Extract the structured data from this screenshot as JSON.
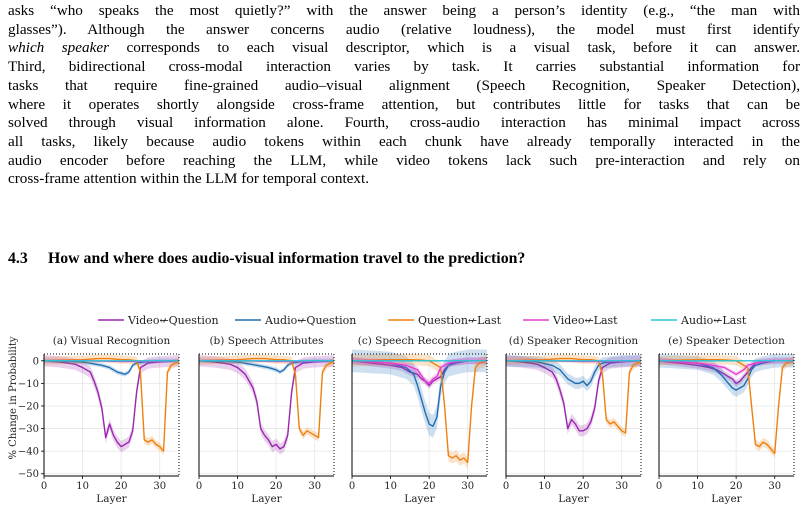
{
  "paragraph": {
    "lines": [
      [
        {
          "t": "asks “who speaks the most quietly?” with the answer being a person’s identity (e.g., “the man with"
        }
      ],
      [
        {
          "t": "glasses”).  Although the answer concerns audio (relative loudness), the model must first identify"
        }
      ],
      [
        {
          "t": "which speaker",
          "i": true
        },
        {
          "t": " corresponds to each visual descriptor, which is a visual task, before it can answer."
        }
      ],
      [
        {
          "t": "Third, bidirectional cross-modal interaction varies by task.  It carries substantial information for"
        }
      ],
      [
        {
          "t": "tasks that require fine-grained audio–visual alignment (Speech Recognition, Speaker Detection),"
        }
      ],
      [
        {
          "t": "where it operates shortly alongside cross-frame attention, but contributes little for tasks that can be"
        }
      ],
      [
        {
          "t": "solved through visual information alone. Fourth, cross-audio interaction has minimal impact across"
        }
      ],
      [
        {
          "t": "all tasks, likely because audio tokens within each chunk have already temporally interacted in the"
        }
      ],
      [
        {
          "t": "audio encoder before reaching the LLM, while video tokens lack such pre-interaction and rely on"
        }
      ],
      [
        {
          "t": "cross-frame attention within the LLM for temporal context."
        }
      ]
    ]
  },
  "section": {
    "number": "4.3",
    "title": "How and where does audio-visual information travel to the prediction?"
  },
  "figure": {
    "legend": [
      {
        "name": "Video↚Question",
        "color": "#9b27af"
      },
      {
        "name": "Audio↚Question",
        "color": "#1f6fb4"
      },
      {
        "name": "Question↚Last",
        "color": "#ef7f0e"
      },
      {
        "name": "Video↚Last",
        "color": "#e23fd3"
      },
      {
        "name": "Audio↚Last",
        "color": "#25c6d6"
      }
    ],
    "ylabel": "% Change in Probability",
    "xlabel": "Layer"
  },
  "chart_data": [
    {
      "type": "line",
      "title": "(a) Visual Recognition",
      "xlabel": "Layer",
      "ylabel": "% Change in Probability",
      "xlim": [
        0,
        35
      ],
      "ylim": [
        -51,
        3
      ],
      "xticks": [
        0,
        10,
        20,
        30
      ],
      "yticks": [
        0,
        -10,
        -20,
        -30,
        -40,
        -50
      ],
      "grid": true,
      "series": [
        {
          "name": "Video↚Question",
          "x": [
            0,
            4,
            8,
            10,
            12,
            13,
            14,
            15,
            16,
            17,
            18,
            19,
            20,
            21,
            22,
            23,
            24,
            25,
            27,
            30,
            35
          ],
          "y": [
            0,
            -0.5,
            -1.5,
            -3,
            -5,
            -9,
            -14,
            -21,
            -34,
            -28,
            -33,
            -36,
            -38,
            -37,
            -36,
            -31,
            -14,
            -3,
            -1,
            -0.5,
            0
          ],
          "band": 2.5
        },
        {
          "name": "Audio↚Question",
          "x": [
            0,
            10,
            15,
            17,
            19,
            21,
            22,
            23,
            24,
            26,
            30,
            35
          ],
          "y": [
            0,
            -0.5,
            -2,
            -3,
            -5,
            -6,
            -5,
            -2,
            -1,
            -0.5,
            0,
            0
          ],
          "band": 1
        },
        {
          "name": "Question↚Last",
          "x": [
            0,
            5,
            10,
            14,
            17,
            20,
            22,
            24,
            25,
            26,
            27,
            28,
            29,
            30,
            31,
            32,
            33,
            34,
            35
          ],
          "y": [
            0,
            0.3,
            0.5,
            1,
            1,
            0.5,
            0.5,
            0,
            -5,
            -35,
            -36,
            -35,
            -37,
            -38,
            -40,
            -5,
            -2,
            -1,
            -0.5
          ],
          "band": 1.8
        },
        {
          "name": "Video↚Last",
          "x": [
            0,
            10,
            20,
            30,
            35
          ],
          "y": [
            0,
            0,
            -0.3,
            -0.3,
            0
          ],
          "band": 0.5
        },
        {
          "name": "Audio↚Last",
          "x": [
            0,
            35
          ],
          "y": [
            0,
            0
          ],
          "band": 0.3
        }
      ]
    },
    {
      "type": "line",
      "title": "(b) Speech Attributes",
      "xlabel": "Layer",
      "xlim": [
        0,
        35
      ],
      "ylim": [
        -51,
        3
      ],
      "xticks": [
        0,
        10,
        20,
        30
      ],
      "grid": true,
      "series": [
        {
          "name": "Video↚Question",
          "x": [
            0,
            4,
            8,
            10,
            12,
            14,
            15,
            16,
            17,
            18,
            19,
            20,
            21,
            22,
            23,
            24,
            25,
            27,
            30,
            35
          ],
          "y": [
            0,
            -0.5,
            -1.5,
            -3,
            -6,
            -12,
            -18,
            -30,
            -33,
            -35,
            -38,
            -37,
            -39,
            -38,
            -33,
            -14,
            -3,
            -1,
            -0.5,
            0
          ],
          "band": 2.5
        },
        {
          "name": "Audio↚Question",
          "x": [
            0,
            10,
            15,
            18,
            20,
            21,
            22,
            23,
            24,
            26,
            30,
            35
          ],
          "y": [
            0,
            -0.5,
            -2,
            -3,
            -4,
            -5,
            -4,
            -2,
            -1,
            -0.5,
            0,
            0
          ],
          "band": 1
        },
        {
          "name": "Question↚Last",
          "x": [
            0,
            5,
            10,
            14,
            17,
            20,
            22,
            24,
            25,
            26,
            27,
            28,
            29,
            30,
            31,
            32,
            33,
            34,
            35
          ],
          "y": [
            0,
            0.3,
            0.5,
            1,
            1,
            0.5,
            0.5,
            0,
            -6,
            -30,
            -33,
            -31,
            -32,
            -33,
            -34,
            -5,
            -2,
            -1,
            -0.5
          ],
          "band": 1.8
        },
        {
          "name": "Video↚Last",
          "x": [
            0,
            10,
            20,
            30,
            35
          ],
          "y": [
            0,
            0,
            -0.3,
            -0.3,
            0
          ],
          "band": 0.5
        },
        {
          "name": "Audio↚Last",
          "x": [
            0,
            35
          ],
          "y": [
            0,
            0
          ],
          "band": 0.3
        }
      ]
    },
    {
      "type": "line",
      "title": "(c) Speech Recognition",
      "xlabel": "Layer",
      "xlim": [
        0,
        35
      ],
      "ylim": [
        -51,
        3
      ],
      "xticks": [
        0,
        10,
        20,
        30
      ],
      "grid": true,
      "series": [
        {
          "name": "Video↚Question",
          "x": [
            0,
            5,
            10,
            13,
            15,
            17,
            18,
            19,
            20,
            21,
            22,
            23,
            24,
            25,
            26,
            28,
            30,
            35
          ],
          "y": [
            0,
            -1,
            -2,
            -3,
            -5,
            -6,
            -8,
            -9,
            -11,
            -9,
            -8,
            -7,
            -4,
            -2,
            -1,
            -0.5,
            0,
            0
          ],
          "band": 1.5
        },
        {
          "name": "Audio↚Question",
          "x": [
            0,
            5,
            10,
            14,
            16,
            17,
            18,
            19,
            20,
            21,
            22,
            23,
            24,
            25,
            27,
            30,
            35
          ],
          "y": [
            0,
            -0.5,
            -1,
            -3,
            -6,
            -11,
            -17,
            -23,
            -28,
            -29,
            -25,
            -11,
            -5,
            -2,
            -1,
            0,
            0
          ],
          "band": 5
        },
        {
          "name": "Question↚Last",
          "x": [
            0,
            5,
            10,
            15,
            18,
            20,
            22,
            23,
            24,
            25,
            26,
            27,
            28,
            29,
            30,
            31,
            32,
            33,
            34,
            35
          ],
          "y": [
            0,
            0.3,
            0.5,
            0.5,
            0.3,
            0,
            -2,
            -3,
            -20,
            -42,
            -43,
            -42,
            -44,
            -43,
            -45,
            -20,
            -3,
            -1,
            -0.5,
            0
          ],
          "band": 2.5
        },
        {
          "name": "Video↚Last",
          "x": [
            0,
            5,
            10,
            14,
            17,
            19,
            20,
            21,
            22,
            23,
            25,
            27,
            30,
            35
          ],
          "y": [
            0,
            -0.5,
            -1,
            -2,
            -4,
            -9,
            -10,
            -8,
            -7,
            -3,
            -1,
            -0.5,
            0,
            0
          ],
          "band": 1.5
        },
        {
          "name": "Audio↚Last",
          "x": [
            0,
            35
          ],
          "y": [
            0,
            0
          ],
          "band": 0.3
        }
      ]
    },
    {
      "type": "line",
      "title": "(d) Speaker Recognition",
      "xlabel": "Layer",
      "xlim": [
        0,
        35
      ],
      "ylim": [
        -51,
        3
      ],
      "xticks": [
        0,
        10,
        20,
        30
      ],
      "grid": true,
      "series": [
        {
          "name": "Video↚Question",
          "x": [
            0,
            4,
            8,
            10,
            12,
            13,
            14,
            15,
            16,
            17,
            18,
            19,
            20,
            21,
            22,
            23,
            24,
            25,
            27,
            30,
            35
          ],
          "y": [
            0,
            -0.5,
            -1.5,
            -3,
            -5,
            -8,
            -13,
            -19,
            -30,
            -26,
            -28,
            -31,
            -31,
            -30,
            -27,
            -21,
            -9,
            -3,
            -1,
            -0.5,
            0
          ],
          "band": 2.5
        },
        {
          "name": "Audio↚Question",
          "x": [
            0,
            8,
            12,
            14,
            16,
            18,
            19,
            20,
            21,
            22,
            23,
            24,
            25,
            27,
            30,
            35
          ],
          "y": [
            0,
            -0.5,
            -2,
            -4,
            -8,
            -10,
            -10,
            -9,
            -11,
            -9,
            -5,
            -2,
            -1,
            -0.5,
            0,
            0
          ],
          "band": 2.5
        },
        {
          "name": "Question↚Last",
          "x": [
            0,
            5,
            10,
            14,
            17,
            20,
            22,
            24,
            25,
            26,
            27,
            28,
            29,
            30,
            31,
            32,
            33,
            34,
            35
          ],
          "y": [
            0,
            0.3,
            0.5,
            1,
            1,
            0.5,
            0.5,
            0,
            -6,
            -26,
            -28,
            -27,
            -29,
            -31,
            -32,
            -5,
            -2,
            -1,
            -0.5
          ],
          "band": 1.8
        },
        {
          "name": "Video↚Last",
          "x": [
            0,
            10,
            20,
            30,
            35
          ],
          "y": [
            0,
            0,
            -0.3,
            -0.3,
            0
          ],
          "band": 0.5
        },
        {
          "name": "Audio↚Last",
          "x": [
            0,
            35
          ],
          "y": [
            0,
            0
          ],
          "band": 0.3
        }
      ]
    },
    {
      "type": "line",
      "title": "(e) Speaker Detection",
      "xlabel": "Layer",
      "xlim": [
        0,
        35
      ],
      "ylim": [
        -51,
        3
      ],
      "xticks": [
        0,
        10,
        20,
        30
      ],
      "grid": true,
      "series": [
        {
          "name": "Video↚Question",
          "x": [
            0,
            5,
            10,
            13,
            15,
            17,
            18,
            19,
            20,
            21,
            22,
            23,
            24,
            25,
            27,
            30,
            35
          ],
          "y": [
            0,
            -1,
            -2,
            -3,
            -4,
            -6,
            -7,
            -8,
            -10,
            -9,
            -7,
            -5,
            -3,
            -1,
            -0.5,
            0,
            0
          ],
          "band": 1.5
        },
        {
          "name": "Audio↚Question",
          "x": [
            0,
            5,
            10,
            14,
            16,
            18,
            19,
            20,
            21,
            22,
            23,
            24,
            25,
            27,
            30,
            35
          ],
          "y": [
            0,
            -0.5,
            -1,
            -3,
            -6,
            -10,
            -12,
            -13,
            -12,
            -11,
            -8,
            -4,
            -2,
            -1,
            0,
            0
          ],
          "band": 3
        },
        {
          "name": "Question↚Last",
          "x": [
            0,
            5,
            10,
            15,
            18,
            20,
            22,
            23,
            24,
            25,
            26,
            27,
            28,
            29,
            30,
            31,
            32,
            33,
            34,
            35
          ],
          "y": [
            0,
            0.3,
            0.5,
            0.5,
            0.3,
            0,
            -2,
            -3,
            -20,
            -37,
            -38,
            -36,
            -37,
            -39,
            -41,
            -20,
            -3,
            -1,
            -0.5,
            0
          ],
          "band": 2
        },
        {
          "name": "Video↚Last",
          "x": [
            0,
            5,
            10,
            14,
            17,
            19,
            20,
            21,
            22,
            23,
            25,
            27,
            30,
            35
          ],
          "y": [
            0,
            -0.5,
            -1,
            -2,
            -3,
            -5,
            -6,
            -5,
            -4,
            -2,
            -1,
            -0.5,
            0,
            0
          ],
          "band": 1
        },
        {
          "name": "Audio↚Last",
          "x": [
            0,
            35
          ],
          "y": [
            0,
            0
          ],
          "band": 0.3
        }
      ]
    }
  ]
}
